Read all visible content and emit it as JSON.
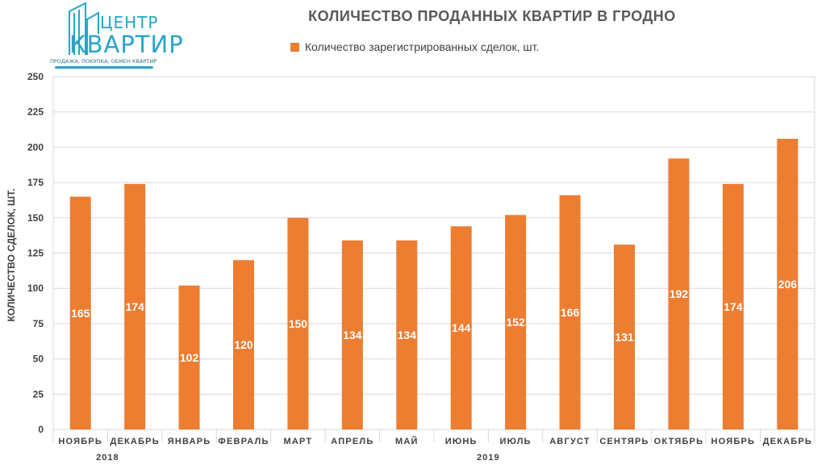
{
  "logo": {
    "word1": "ЦЕНТР",
    "word2": "КВАРТИР",
    "tagline": "ПРОДАЖА, ПОКУПКА, ОБМЕН КВАРТИР",
    "color": "#29a3c9"
  },
  "chart_data": {
    "type": "bar",
    "title": "КОЛИЧЕСТВО ПРОДАННЫХ КВАРТИР В ГРОДНО",
    "ylabel": "КОЛИЧЕСТВО СДЕЛОК, ШТ.",
    "xlabel": "",
    "ylim": [
      0,
      250
    ],
    "yticks": [
      0,
      25,
      50,
      75,
      100,
      125,
      150,
      175,
      200,
      225,
      250
    ],
    "grid": true,
    "legend_position": "top-center",
    "categories": [
      "НОЯБРЬ",
      "ДЕКАБРЬ",
      "ЯНВАРЬ",
      "ФЕВРАЛЬ",
      "МАРТ",
      "АПРЕЛЬ",
      "МАЙ",
      "ИЮНЬ",
      "ИЮЛЬ",
      "АВГУСТ",
      "СЕНТЯРЬ",
      "ОКТЯБРЬ",
      "НОЯБРЬ",
      "ДЕКАБРЬ"
    ],
    "year_groups": [
      {
        "label": "2018",
        "from": 0,
        "to": 1
      },
      {
        "label": "2019",
        "from": 2,
        "to": 13
      }
    ],
    "series": [
      {
        "name": "Количество зарегистрированных сделок, шт.",
        "color": "#ed7d31",
        "values": [
          165,
          174,
          102,
          120,
          150,
          134,
          134,
          144,
          152,
          166,
          131,
          192,
          174,
          206
        ]
      }
    ]
  }
}
